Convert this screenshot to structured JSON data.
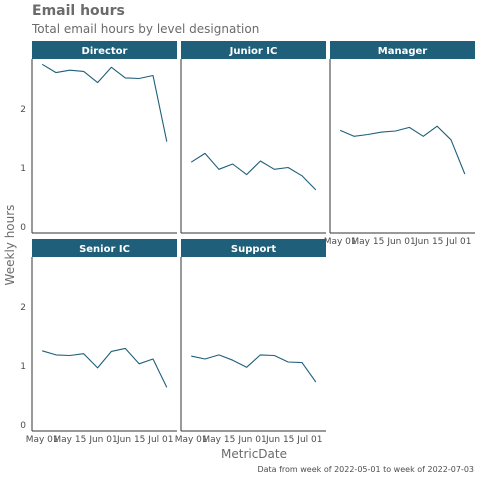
{
  "chart_data": {
    "type": "line",
    "title": "Email hours",
    "subtitle": "Total email hours by level designation",
    "xlabel": "MetricDate",
    "ylabel": "Weekly hours",
    "caption": "Data from week of 2022-05-01 to week of 2022-07-03",
    "ylim": [
      -0.1,
      2.85
    ],
    "y_ticks": [
      0,
      1,
      2
    ],
    "x_tick_labels": [
      "May 01",
      "May 15",
      "Jun 01",
      "Jun 15",
      "Jul 01"
    ],
    "x_tick_positions": [
      0,
      2,
      4.43,
      6.43,
      8.57
    ],
    "x_range": [
      -0.3,
      9.3
    ],
    "line_color": "#1f5f7a",
    "strip_color": "#1f5f7a",
    "panels": [
      {
        "label": "Director",
        "values": [
          2.76,
          2.62,
          2.66,
          2.64,
          2.45,
          2.71,
          2.53,
          2.52,
          2.57,
          1.45
        ]
      },
      {
        "label": "Junior IC",
        "values": [
          1.1,
          1.25,
          0.98,
          1.07,
          0.89,
          1.12,
          0.98,
          1.01,
          0.87,
          0.63
        ]
      },
      {
        "label": "Manager",
        "values": [
          1.64,
          1.54,
          1.57,
          1.61,
          1.63,
          1.69,
          1.54,
          1.71,
          1.48,
          0.9
        ]
      },
      {
        "label": "Senior IC",
        "values": [
          1.26,
          1.19,
          1.18,
          1.21,
          0.97,
          1.25,
          1.3,
          1.04,
          1.12,
          0.64
        ]
      },
      {
        "label": "Support",
        "values": [
          1.17,
          1.12,
          1.19,
          1.1,
          0.98,
          1.19,
          1.18,
          1.07,
          1.06,
          0.73
        ]
      }
    ]
  }
}
